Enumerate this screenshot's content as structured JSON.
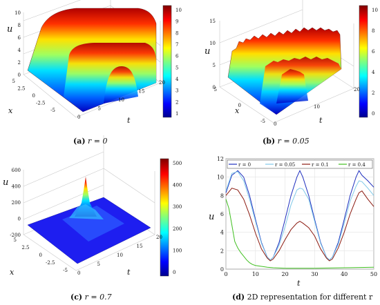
{
  "panels": [
    {
      "id": "a",
      "caption_letter": "(a)",
      "caption_text": "r = 0",
      "z_label": "u",
      "x_label": "x",
      "t_label": "t",
      "z_ticks": [
        "0",
        "2",
        "4",
        "6",
        "8",
        "10"
      ],
      "x_ticks": [
        "5",
        "2.5",
        "0",
        "-2.5",
        "-5"
      ],
      "t_ticks": [
        "0",
        "5",
        "10",
        "15",
        "20"
      ],
      "colorbar_ticks": [
        "10",
        "9",
        "8",
        "7",
        "6",
        "5",
        "4",
        "3",
        "2",
        "1"
      ]
    },
    {
      "id": "b",
      "caption_letter": "(b)",
      "caption_text": "r = 0.05",
      "z_label": "u",
      "x_label": "x",
      "t_label": "t",
      "z_ticks": [
        "0",
        "5",
        "10",
        "15"
      ],
      "x_ticks": [
        "5",
        "0",
        "-5"
      ],
      "t_ticks": [
        "0",
        "10",
        "20"
      ],
      "colorbar_ticks": [
        "10",
        "8",
        "6",
        "4",
        "2",
        "0"
      ]
    },
    {
      "id": "c",
      "caption_letter": "(c)",
      "caption_text": "r = 0.7",
      "z_label": "u",
      "x_label": "x",
      "t_label": "t",
      "z_ticks": [
        "-200",
        "0",
        "200",
        "400",
        "600"
      ],
      "x_ticks": [
        "5",
        "2.5",
        "0",
        "-2.5",
        "-5"
      ],
      "t_ticks": [
        "0",
        "5",
        "10",
        "15",
        "20"
      ],
      "colorbar_ticks": [
        "500",
        "400",
        "300",
        "200",
        "100",
        "0"
      ]
    }
  ],
  "panel_d": {
    "caption_letter": "(d)",
    "caption_text": "2D representation for different r",
    "chart_data": {
      "type": "line",
      "xlabel": "t",
      "ylabel": "u",
      "xlim": [
        0,
        50
      ],
      "ylim": [
        0,
        12
      ],
      "x_ticks": [
        "0",
        "10",
        "20",
        "30",
        "40",
        "50"
      ],
      "y_ticks": [
        "0",
        "2",
        "4",
        "6",
        "8",
        "10",
        "12"
      ],
      "grid": true,
      "legend_placement": "top",
      "series": [
        {
          "name": "r = 0",
          "color": "#1f2fbf",
          "x": [
            0,
            2,
            4,
            6,
            8,
            10,
            12,
            14,
            15,
            16,
            18,
            20,
            22,
            24,
            25,
            26,
            28,
            30,
            32,
            34,
            35,
            36,
            38,
            40,
            42,
            44,
            45,
            46,
            48,
            50
          ],
          "y": [
            8.3,
            10.2,
            10.7,
            10.0,
            8.0,
            5.4,
            2.9,
            1.3,
            1.0,
            1.3,
            2.9,
            5.4,
            8.0,
            10.0,
            10.7,
            10.0,
            8.0,
            5.4,
            2.9,
            1.3,
            1.0,
            1.3,
            2.9,
            5.4,
            8.0,
            10.0,
            10.7,
            10.2,
            9.6,
            8.9
          ]
        },
        {
          "name": "r = 0.05",
          "color": "#7fc8e8",
          "x": [
            0,
            2,
            4,
            6,
            8,
            10,
            12,
            14,
            15,
            16,
            18,
            20,
            22,
            24,
            25,
            26,
            28,
            30,
            32,
            34,
            35,
            36,
            38,
            40,
            42,
            44,
            45,
            46,
            48,
            50
          ],
          "y": [
            8.5,
            10.4,
            10.6,
            9.6,
            7.6,
            5.2,
            2.8,
            1.3,
            1.0,
            1.3,
            2.6,
            4.6,
            7.0,
            8.6,
            8.8,
            8.7,
            7.6,
            5.2,
            2.8,
            1.3,
            1.0,
            1.3,
            2.7,
            5.0,
            7.4,
            9.0,
            9.6,
            9.5,
            8.8,
            8.0
          ]
        },
        {
          "name": "r = 0.1",
          "color": "#8b1a10",
          "x": [
            0,
            2,
            4,
            6,
            8,
            10,
            12,
            14,
            15,
            16,
            18,
            20,
            22,
            24,
            25,
            26,
            28,
            30,
            32,
            34,
            35,
            36,
            38,
            40,
            42,
            44,
            45,
            46,
            48,
            50
          ],
          "y": [
            8.0,
            8.8,
            8.6,
            7.6,
            5.9,
            3.9,
            2.2,
            1.2,
            0.9,
            1.1,
            2.0,
            3.2,
            4.3,
            5.0,
            5.2,
            5.0,
            4.5,
            3.6,
            2.2,
            1.2,
            0.9,
            1.1,
            2.3,
            4.0,
            6.0,
            7.6,
            8.3,
            8.5,
            7.6,
            6.8
          ]
        },
        {
          "name": "r = 0.4",
          "color": "#3fbf1f",
          "x": [
            0,
            1,
            2,
            3,
            4,
            5,
            6,
            7,
            8,
            9,
            10,
            12,
            14,
            16,
            20,
            30,
            40,
            50
          ],
          "y": [
            7.6,
            6.6,
            4.8,
            3.0,
            2.3,
            1.8,
            1.4,
            1.0,
            0.7,
            0.5,
            0.4,
            0.3,
            0.2,
            0.15,
            0.1,
            0.1,
            0.15,
            0.2
          ]
        }
      ]
    }
  }
}
